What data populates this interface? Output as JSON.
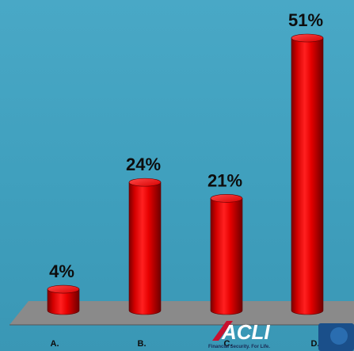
{
  "chart_data": {
    "type": "bar",
    "categories": [
      "A.",
      "B.",
      "C.",
      "D."
    ],
    "values": [
      4,
      24,
      21,
      51
    ],
    "value_labels": [
      "4%",
      "24%",
      "21%",
      "51%"
    ],
    "ylim": [
      0,
      51
    ],
    "grid": false,
    "legend": "none",
    "bar_color": "#e00000",
    "floor_color": "#8a8a8a"
  },
  "logo": {
    "text": "ACLI",
    "tagline": "Financial Security. For Life.",
    "colors": {
      "accent": "#c8102e",
      "text": "#ffffff",
      "tagline": "#1a2b55",
      "badge": "#1a4f8a"
    }
  },
  "colors": {
    "background": "#45a3c1"
  }
}
